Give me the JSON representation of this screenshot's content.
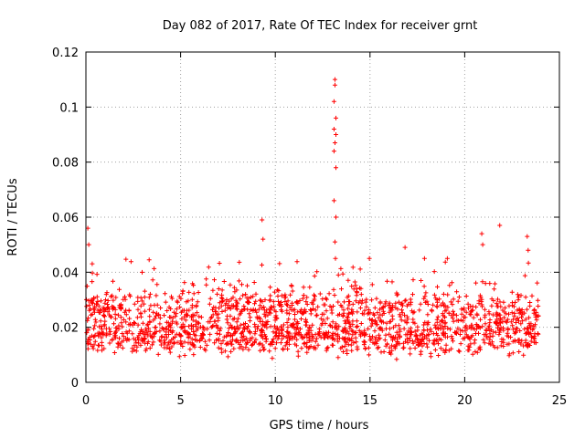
{
  "chart_data": {
    "type": "scatter",
    "title": "Day 082 of 2017, Rate Of TEC Index for receiver grnt",
    "xlabel": "GPS time / hours",
    "ylabel": "ROTI / TECUs",
    "xlim": [
      0,
      25
    ],
    "ylim": [
      0,
      0.12
    ],
    "grid": true,
    "marker": "+",
    "marker_color": "#ff0000",
    "x_ticks": [
      0,
      5,
      10,
      15,
      20,
      25
    ],
    "x_tick_labels": [
      "0",
      "5",
      "10",
      "15",
      "20",
      "25"
    ],
    "y_ticks": [
      0,
      0.02,
      0.04,
      0.06,
      0.08,
      0.1,
      0.12
    ],
    "y_tick_labels": [
      "0",
      "0.02",
      "0.04",
      "0.06",
      "0.08",
      "0.1",
      "0.12"
    ],
    "data_range_x": [
      0,
      23.9
    ],
    "bulk_range_y": [
      0.005,
      0.045
    ],
    "series": [
      {
        "name": "ROTI",
        "notable_points": [
          {
            "x": 0.1,
            "y": 0.056
          },
          {
            "x": 0.15,
            "y": 0.05
          },
          {
            "x": 9.3,
            "y": 0.059
          },
          {
            "x": 9.35,
            "y": 0.052
          },
          {
            "x": 13.15,
            "y": 0.11
          },
          {
            "x": 13.15,
            "y": 0.108
          },
          {
            "x": 13.1,
            "y": 0.102
          },
          {
            "x": 13.2,
            "y": 0.096
          },
          {
            "x": 13.1,
            "y": 0.092
          },
          {
            "x": 13.2,
            "y": 0.09
          },
          {
            "x": 13.15,
            "y": 0.087
          },
          {
            "x": 13.1,
            "y": 0.084
          },
          {
            "x": 13.2,
            "y": 0.078
          },
          {
            "x": 13.1,
            "y": 0.066
          },
          {
            "x": 13.2,
            "y": 0.06
          },
          {
            "x": 13.15,
            "y": 0.051
          },
          {
            "x": 16.85,
            "y": 0.049
          },
          {
            "x": 20.9,
            "y": 0.054
          },
          {
            "x": 20.95,
            "y": 0.05
          },
          {
            "x": 21.85,
            "y": 0.057
          },
          {
            "x": 23.3,
            "y": 0.053
          },
          {
            "x": 23.35,
            "y": 0.048
          }
        ]
      }
    ]
  }
}
